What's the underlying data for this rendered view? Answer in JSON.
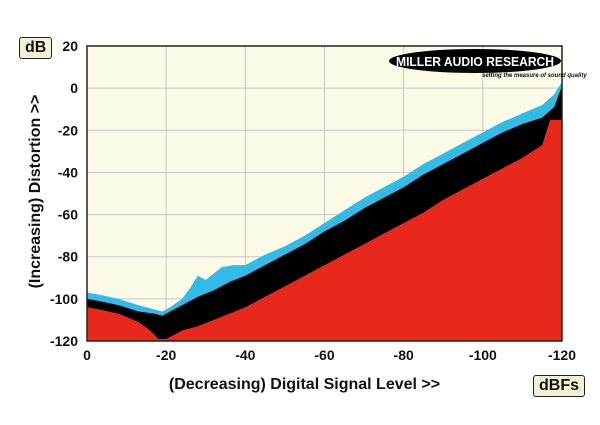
{
  "chart_data": {
    "type": "area",
    "title": "",
    "xlabel": "(Decreasing) Digital Signal Level >>",
    "ylabel": "(Increasing) Distortion >>",
    "x_unit": "dBFs",
    "y_unit": "dB",
    "xlim": [
      0,
      -120
    ],
    "ylim": [
      -120,
      20
    ],
    "x_ticks": [
      0,
      -20,
      -40,
      -60,
      -80,
      -100,
      -120
    ],
    "y_ticks": [
      20,
      0,
      -20,
      -40,
      -60,
      -80,
      -100,
      -120
    ],
    "grid": true,
    "series": [
      {
        "color": "#33bbe8",
        "x": [
          0,
          -3,
          -8,
          -13,
          -17,
          -19,
          -21,
          -24,
          -26,
          -28,
          -30,
          -32,
          -34,
          -37,
          -40,
          -45,
          -50,
          -55,
          -60,
          -65,
          -70,
          -75,
          -80,
          -85,
          -90,
          -95,
          -100,
          -105,
          -110,
          -115,
          -118,
          -120
        ],
        "values": [
          -97,
          -98,
          -100,
          -103,
          -105,
          -106,
          -104,
          -100,
          -95,
          -89,
          -91,
          -88,
          -85,
          -84,
          -84,
          -79,
          -75,
          -70,
          -64,
          -58,
          -52,
          -47,
          -42,
          -36,
          -31,
          -26,
          -21,
          -16,
          -12,
          -8,
          -3,
          3
        ]
      },
      {
        "color": "#000000",
        "x": [
          0,
          -3,
          -8,
          -13,
          -17,
          -19,
          -21,
          -24,
          -28,
          -32,
          -36,
          -40,
          -45,
          -50,
          -55,
          -60,
          -65,
          -70,
          -75,
          -80,
          -85,
          -90,
          -95,
          -100,
          -105,
          -110,
          -115,
          -118,
          -120
        ],
        "values": [
          -100,
          -101,
          -103,
          -106,
          -107,
          -108,
          -106,
          -103,
          -99,
          -96,
          -92,
          -89,
          -84,
          -79,
          -74,
          -68,
          -63,
          -57,
          -52,
          -47,
          -41,
          -36,
          -31,
          -26,
          -21,
          -17,
          -14,
          -9,
          1
        ]
      },
      {
        "color": "#e8281a",
        "x": [
          0,
          -3,
          -8,
          -13,
          -16,
          -18,
          -20,
          -22,
          -24,
          -28,
          -32,
          -36,
          -40,
          -45,
          -50,
          -55,
          -60,
          -65,
          -70,
          -75,
          -80,
          -85,
          -90,
          -95,
          -100,
          -105,
          -110,
          -115,
          -117,
          -120
        ],
        "values": [
          -104,
          -105,
          -107,
          -111,
          -115,
          -119,
          -119,
          -117,
          -115,
          -113,
          -110,
          -107,
          -104,
          -99,
          -94,
          -89,
          -84,
          -79,
          -74,
          -69,
          -64,
          -59,
          -53,
          -48,
          -43,
          -38,
          -33,
          -27,
          -15,
          -15
        ]
      }
    ]
  },
  "logo": {
    "main": "MILLER AUDIO RESEARCH",
    "tagline": "setting the measure of sound quality"
  },
  "colors": {
    "plot_background": "#fbfae6",
    "grid": "#c8c8c8",
    "logo_background": "#000000"
  }
}
